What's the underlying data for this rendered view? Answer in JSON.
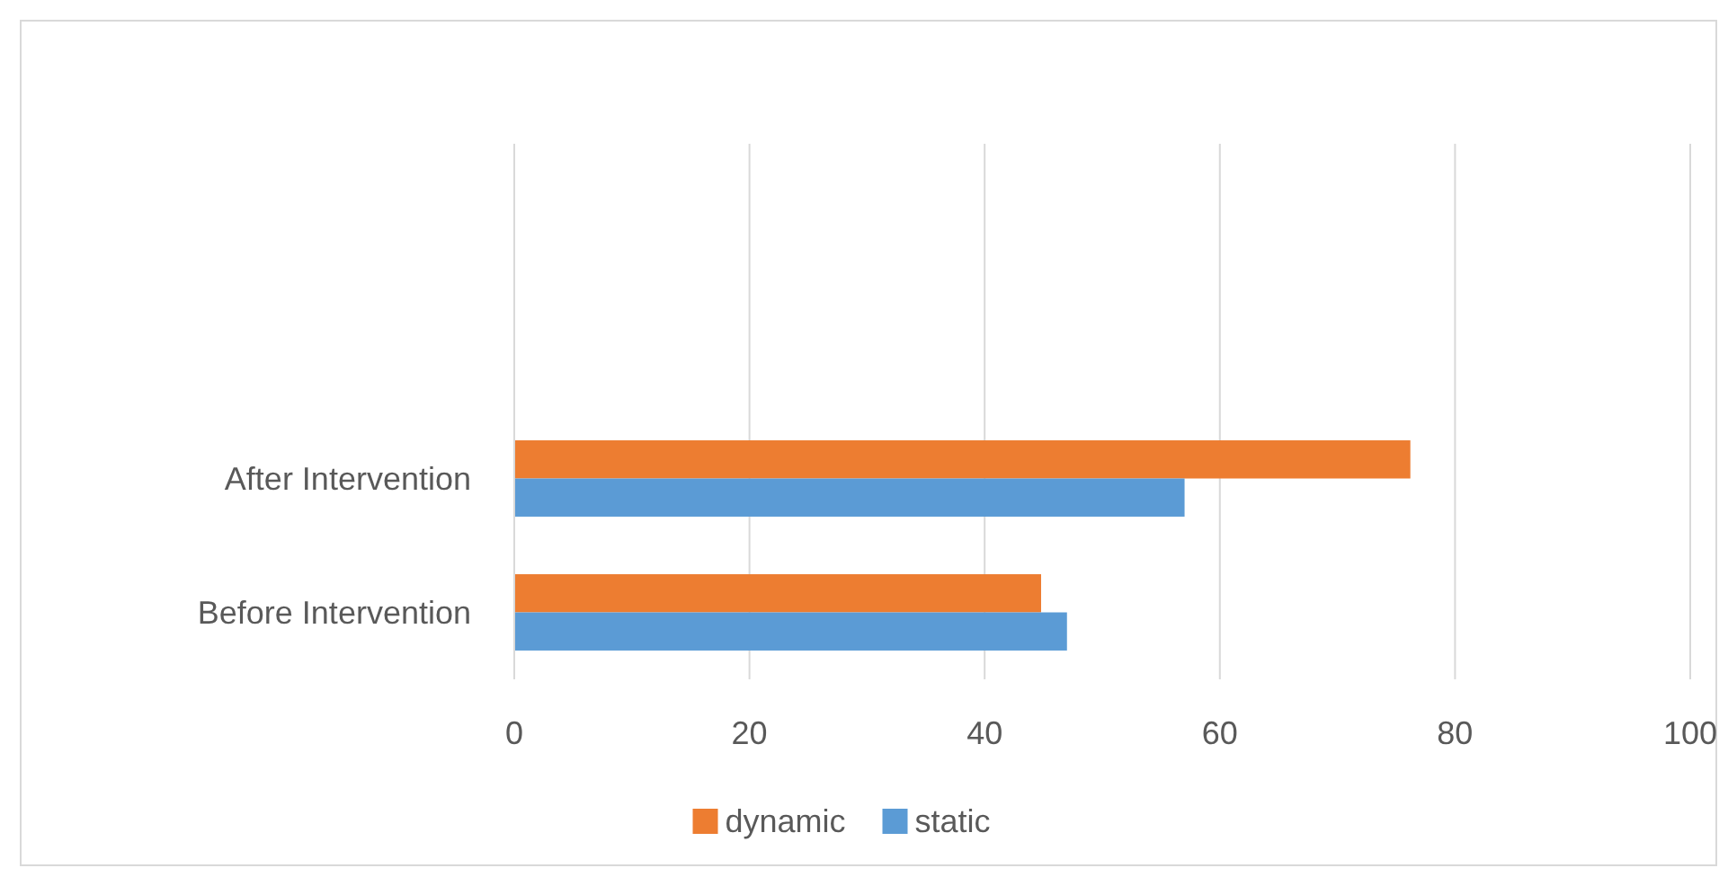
{
  "chart_data": {
    "type": "bar",
    "orientation": "horizontal",
    "categories": [
      null,
      null,
      "After Intervention",
      "Before Intervention"
    ],
    "series": [
      {
        "name": "dynamic",
        "color": "#ed7d31",
        "values": [
          null,
          null,
          76.2,
          44.8
        ]
      },
      {
        "name": "static",
        "color": "#5b9bd5",
        "values": [
          null,
          null,
          57,
          47
        ]
      }
    ],
    "xlim": [
      0,
      100
    ],
    "xticks": [
      0,
      20,
      40,
      60,
      80,
      100
    ],
    "grid": "x",
    "legend": "bottom"
  }
}
